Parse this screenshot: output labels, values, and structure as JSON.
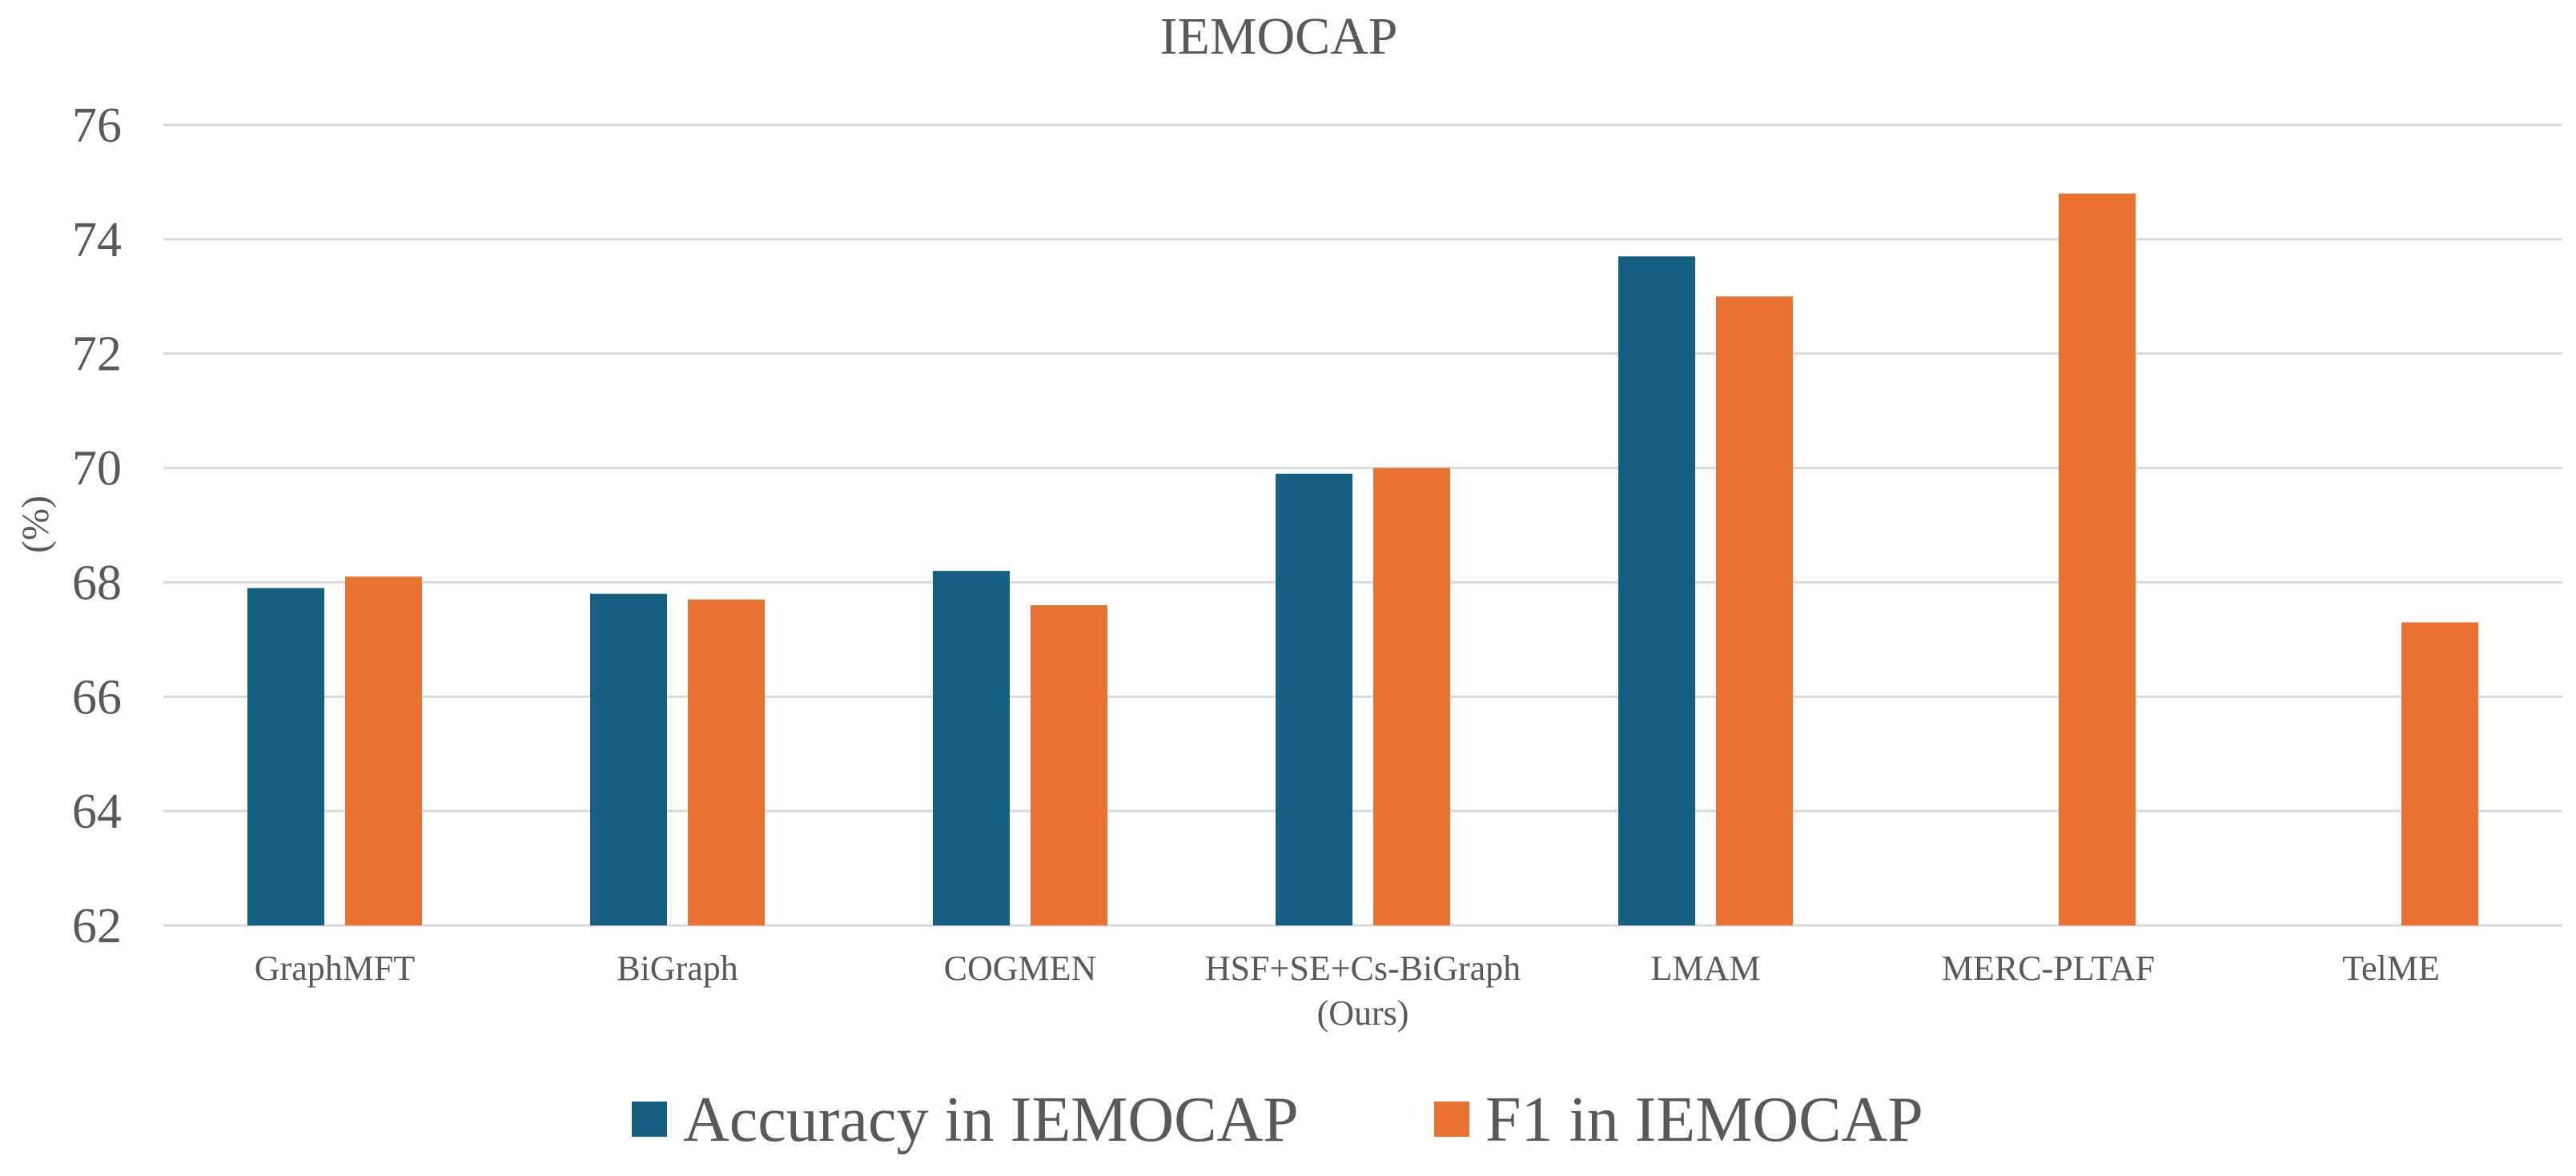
{
  "chart_data": {
    "type": "bar",
    "title": "IEMOCAP",
    "xlabel": "",
    "ylabel": "(%)",
    "ylim": [
      62,
      76
    ],
    "yticks": [
      62,
      64,
      66,
      68,
      70,
      72,
      74,
      76
    ],
    "grid": true,
    "legend_position": "bottom",
    "categories": [
      [
        "GraphMFT"
      ],
      [
        "BiGraph"
      ],
      [
        "COGMEN"
      ],
      [
        "HSF+SE+Cs-BiGraph",
        "(Ours)"
      ],
      [
        "LMAM"
      ],
      [
        "MERC-PLTAF"
      ],
      [
        "TelME"
      ]
    ],
    "series": [
      {
        "name": "Accuracy in IEMOCAP",
        "color": "#155f83",
        "values": [
          67.9,
          67.8,
          68.2,
          69.9,
          73.7,
          null,
          null
        ]
      },
      {
        "name": "F1 in IEMOCAP",
        "color": "#e97132",
        "values": [
          68.1,
          67.7,
          67.6,
          70.0,
          73.0,
          74.8,
          67.3
        ]
      }
    ]
  }
}
